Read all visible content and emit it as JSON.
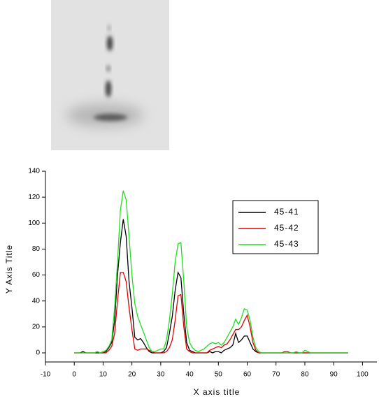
{
  "chart_data": {
    "type": "line",
    "x_label": "X axis title",
    "y_label": "Y Axis Title",
    "x": [
      0,
      1,
      2,
      3,
      4,
      5,
      6,
      7,
      8,
      9,
      10,
      11,
      12,
      13,
      14,
      15,
      16,
      17,
      18,
      19,
      20,
      21,
      22,
      23,
      24,
      25,
      26,
      27,
      28,
      29,
      30,
      31,
      32,
      33,
      34,
      35,
      36,
      37,
      38,
      39,
      40,
      41,
      42,
      43,
      44,
      45,
      46,
      47,
      48,
      49,
      50,
      51,
      52,
      53,
      54,
      55,
      56,
      57,
      58,
      59,
      60,
      61,
      62,
      63,
      64,
      65,
      66,
      67,
      68,
      69,
      70,
      71,
      72,
      73,
      74,
      75,
      76,
      77,
      78,
      79,
      80,
      81,
      82,
      83,
      84,
      85,
      86,
      87,
      88,
      89,
      90,
      91,
      92,
      93,
      94,
      95
    ],
    "series": [
      {
        "name": "45-41",
        "color": "#000000",
        "values": [
          0,
          0,
          0,
          1,
          0,
          0,
          0,
          0,
          0,
          0,
          0,
          1,
          4,
          8,
          25,
          60,
          85,
          103,
          90,
          55,
          35,
          12,
          10,
          11,
          8,
          4,
          1,
          0,
          0,
          0,
          0,
          1,
          4,
          15,
          28,
          48,
          62,
          58,
          30,
          8,
          2,
          1,
          0,
          0,
          0,
          0,
          0,
          1,
          0,
          1,
          1,
          0,
          2,
          3,
          4,
          6,
          15,
          8,
          10,
          13,
          13,
          8,
          3,
          1,
          0,
          0,
          0,
          0,
          0,
          0,
          0,
          0,
          0,
          0,
          0,
          0,
          0,
          0,
          0,
          0,
          0,
          0,
          0,
          0,
          0,
          0,
          0,
          0,
          0,
          0,
          0,
          0,
          0,
          0,
          0,
          0
        ]
      },
      {
        "name": "45-42",
        "color": "#e00000",
        "values": [
          0,
          0,
          0,
          0,
          0,
          0,
          0,
          0,
          1,
          0,
          0,
          0,
          2,
          5,
          15,
          40,
          62,
          62,
          55,
          35,
          18,
          3,
          2,
          3,
          3,
          3,
          2,
          1,
          0,
          0,
          0,
          0,
          1,
          4,
          10,
          25,
          44,
          45,
          20,
          3,
          1,
          0,
          0,
          0,
          0,
          0,
          0,
          2,
          3,
          4,
          5,
          4,
          6,
          7,
          10,
          14,
          18,
          18,
          20,
          25,
          29,
          20,
          8,
          2,
          0,
          0,
          0,
          0,
          0,
          0,
          0,
          0,
          0,
          1,
          1,
          0,
          0,
          0,
          0,
          0,
          0,
          0,
          0,
          0,
          0,
          0,
          0,
          0,
          0,
          0,
          0,
          0,
          0,
          0,
          0,
          0
        ]
      },
      {
        "name": "45-43",
        "color": "#22dd22",
        "values": [
          0,
          0,
          0,
          0,
          0,
          0,
          0,
          0,
          1,
          0,
          1,
          2,
          5,
          10,
          35,
          70,
          110,
          125,
          118,
          90,
          60,
          38,
          28,
          22,
          16,
          10,
          4,
          1,
          1,
          2,
          3,
          3,
          10,
          25,
          45,
          70,
          84,
          85,
          55,
          20,
          8,
          4,
          2,
          1,
          2,
          3,
          5,
          7,
          8,
          7,
          8,
          6,
          8,
          12,
          16,
          20,
          26,
          22,
          27,
          34,
          33,
          25,
          12,
          4,
          1,
          0,
          0,
          0,
          0,
          0,
          0,
          0,
          0,
          0,
          0,
          0,
          0,
          1,
          0,
          0,
          2,
          1,
          0,
          0,
          0,
          0,
          0,
          0,
          0,
          0,
          0,
          0,
          0,
          0,
          0,
          0
        ]
      }
    ],
    "xlim": [
      -10,
      105
    ],
    "xticks": [
      -10,
      0,
      10,
      20,
      30,
      40,
      50,
      60,
      70,
      80,
      90,
      100
    ],
    "ylim": [
      -7,
      140
    ],
    "yticks": [
      0,
      20,
      40,
      60,
      80,
      100,
      120,
      140
    ],
    "legend": "upper right"
  }
}
